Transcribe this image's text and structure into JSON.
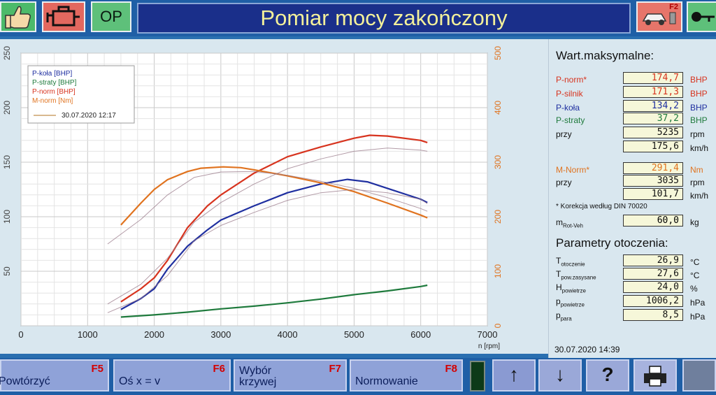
{
  "header": {
    "op_label": "OP",
    "title": "Pomiar mocy zakończony",
    "f2_key": "F2",
    "icons": [
      "thumbs-up-icon",
      "engine-icon",
      "dyno-car-icon",
      "key-icon"
    ]
  },
  "chart_data": {
    "type": "line",
    "xlabel": "n [rpm]",
    "x_ticks": [
      "0",
      "1000",
      "2000",
      "3000",
      "4000",
      "5000",
      "6000",
      "7000"
    ],
    "xlim": [
      0,
      7000
    ],
    "y_left_ticks": [
      "50",
      "100",
      "150",
      "200",
      "250"
    ],
    "ylim_left": [
      0,
      250
    ],
    "y_right_ticks": [
      "0",
      "100",
      "200",
      "300",
      "400",
      "500"
    ],
    "ylim_right": [
      0,
      500
    ],
    "grid": true,
    "legend_position": "top-left",
    "legend": [
      "P-koła [BHP]",
      "P-straty [BHP]",
      "P-norm [BHP]",
      "M-norm [Nm]"
    ],
    "legend_date": "30.07.2020 12:17",
    "colors": {
      "P-koła": "#1f2fa0",
      "P-straty": "#1e7a3c",
      "P-norm": "#d7331e",
      "M-norm": "#e0731f",
      "reference": "#9a7a8a"
    },
    "series": [
      {
        "name": "P-norm",
        "axis": "left",
        "x": [
          1500,
          1800,
          2000,
          2200,
          2500,
          2800,
          3000,
          3500,
          4000,
          4500,
          5000,
          5235,
          5500,
          6000,
          6100
        ],
        "values": [
          22,
          34,
          44,
          60,
          90,
          110,
          120,
          140,
          155,
          164,
          172,
          174.7,
          174,
          170,
          168
        ]
      },
      {
        "name": "P-koła",
        "axis": "left",
        "x": [
          1500,
          1800,
          2000,
          2200,
          2500,
          2800,
          3000,
          3500,
          4000,
          4500,
          4900,
          5200,
          5500,
          6000,
          6100
        ],
        "values": [
          15,
          25,
          34,
          52,
          73,
          88,
          97,
          110,
          122,
          130,
          134.2,
          132,
          126,
          116,
          113
        ]
      },
      {
        "name": "P-straty",
        "axis": "left",
        "x": [
          1500,
          2000,
          2500,
          3000,
          3500,
          4000,
          4500,
          5000,
          5500,
          6000,
          6100
        ],
        "values": [
          8,
          10,
          12.5,
          15.5,
          18,
          21,
          24.5,
          28.5,
          32,
          36,
          37.2
        ]
      },
      {
        "name": "M-norm",
        "axis": "right",
        "x": [
          1500,
          1800,
          2000,
          2200,
          2500,
          2700,
          3035,
          3300,
          3500,
          4000,
          4500,
          5000,
          5500,
          6000,
          6100
        ],
        "values": [
          185,
          225,
          250,
          268,
          283,
          289,
          291.4,
          290,
          286,
          275,
          262,
          246,
          225,
          203,
          198
        ]
      },
      {
        "name": "P-norm-ref",
        "axis": "left",
        "x": [
          1300,
          1800,
          2200,
          2600,
          3000,
          3500,
          4000,
          4500,
          5000,
          5500,
          6000,
          6100
        ],
        "values": [
          20,
          38,
          62,
          95,
          113,
          130,
          144,
          153,
          160,
          163,
          161,
          160
        ]
      },
      {
        "name": "P-koła-ref",
        "axis": "left",
        "x": [
          1300,
          1800,
          2200,
          2600,
          3000,
          3500,
          4000,
          4500,
          5000,
          5500,
          6000,
          6100
        ],
        "values": [
          12,
          25,
          46,
          78,
          92,
          104,
          115,
          122,
          125,
          122,
          116,
          112
        ]
      },
      {
        "name": "M-norm-ref",
        "axis": "right",
        "x": [
          1300,
          1800,
          2200,
          2600,
          3000,
          3500,
          4000,
          4500,
          5000,
          5500,
          6000,
          6100
        ],
        "values": [
          150,
          195,
          240,
          272,
          282,
          283,
          276,
          265,
          252,
          235,
          215,
          210
        ]
      }
    ]
  },
  "maxvals": {
    "title": "Wart.maksymalne:",
    "rows": [
      {
        "label": "P-norm*",
        "value": "174,7",
        "unit": "BHP",
        "color": "#d7331e"
      },
      {
        "label": "P-silnik",
        "value": "171,3",
        "unit": "BHP",
        "color": "#d7331e"
      },
      {
        "label": "P-koła",
        "value": "134,2",
        "unit": "BHP",
        "color": "#1f2fa0"
      },
      {
        "label": "P-straty",
        "value": "37,2",
        "unit": "BHP",
        "color": "#1e7a3c"
      },
      {
        "label": "przy",
        "value": "5235",
        "unit": "rpm",
        "color": "#111111"
      },
      {
        "label": "",
        "value": "175,6",
        "unit": "km/h",
        "color": "#111111"
      },
      {
        "label": "M-Norm*",
        "value": "291,4",
        "unit": "Nm",
        "color": "#e0731f"
      },
      {
        "label": "przy",
        "value": "3035",
        "unit": "rpm",
        "color": "#111111"
      },
      {
        "label": "",
        "value": "101,7",
        "unit": "km/h",
        "color": "#111111"
      }
    ],
    "correction_note": "* Korekcja według DIN 70020",
    "mrot_label": "m",
    "mrot_sub": "Rot-Veh",
    "mrot_value": "60,0",
    "mrot_unit": "kg"
  },
  "ambient": {
    "title": "Parametry otoczenia:",
    "rows": [
      {
        "label": "T",
        "sub": "otoczenie",
        "value": "26,9",
        "unit": "°C"
      },
      {
        "label": "T",
        "sub": "pow.zasysane",
        "value": "27,6",
        "unit": "°C"
      },
      {
        "label": "H",
        "sub": "powietrze",
        "value": "24,0",
        "unit": "%"
      },
      {
        "label": "p",
        "sub": "powietrze",
        "value": "1006,2",
        "unit": "hPa"
      },
      {
        "label": "p",
        "sub": "para",
        "value": "8,5",
        "unit": "hPa"
      }
    ],
    "footer_datetime": "30.07.2020   14:39"
  },
  "footer": {
    "f5": {
      "label": "Powtórzyć",
      "key": "F5"
    },
    "f6": {
      "label": "Oś x = v",
      "key": "F6"
    },
    "f7": {
      "label": "Wybór\nkrzywej",
      "key": "F7"
    },
    "f8": {
      "label": "Normowanie",
      "key": "F8"
    },
    "up": "↑",
    "down": "↓",
    "help": "?"
  }
}
